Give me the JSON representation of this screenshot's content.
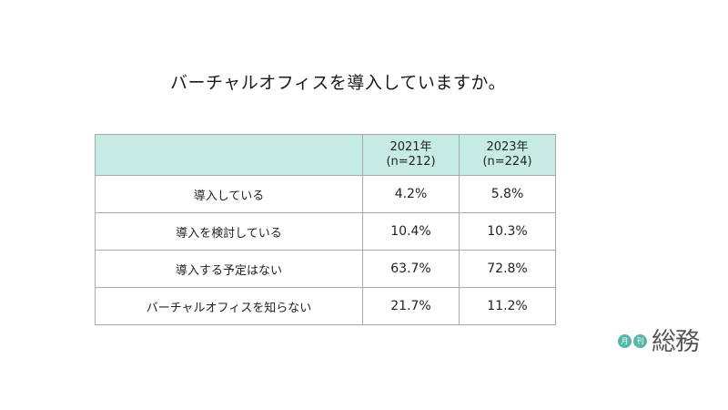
{
  "title": "バーチャルオフィスを導入していますか。",
  "chart_data": {
    "type": "table",
    "columns": [
      {
        "year": "2021年",
        "n": "(n=212)"
      },
      {
        "year": "2023年",
        "n": "(n=224)"
      }
    ],
    "rows": [
      {
        "label": "導入している",
        "values": [
          "4.2%",
          "5.8%"
        ]
      },
      {
        "label": "導入を検討している",
        "values": [
          "10.4%",
          "10.3%"
        ]
      },
      {
        "label": "導入する予定はない",
        "values": [
          "63.7%",
          "72.8%"
        ]
      },
      {
        "label": "バーチャルオフィスを知らない",
        "values": [
          "21.7%",
          "11.2%"
        ]
      }
    ]
  },
  "logo": {
    "badges": [
      "月",
      "刊"
    ],
    "text": "総務",
    "badge_color": "#56b6a8"
  },
  "colors": {
    "header_bg": "#c6ebe3",
    "border": "#a8a8a8"
  }
}
